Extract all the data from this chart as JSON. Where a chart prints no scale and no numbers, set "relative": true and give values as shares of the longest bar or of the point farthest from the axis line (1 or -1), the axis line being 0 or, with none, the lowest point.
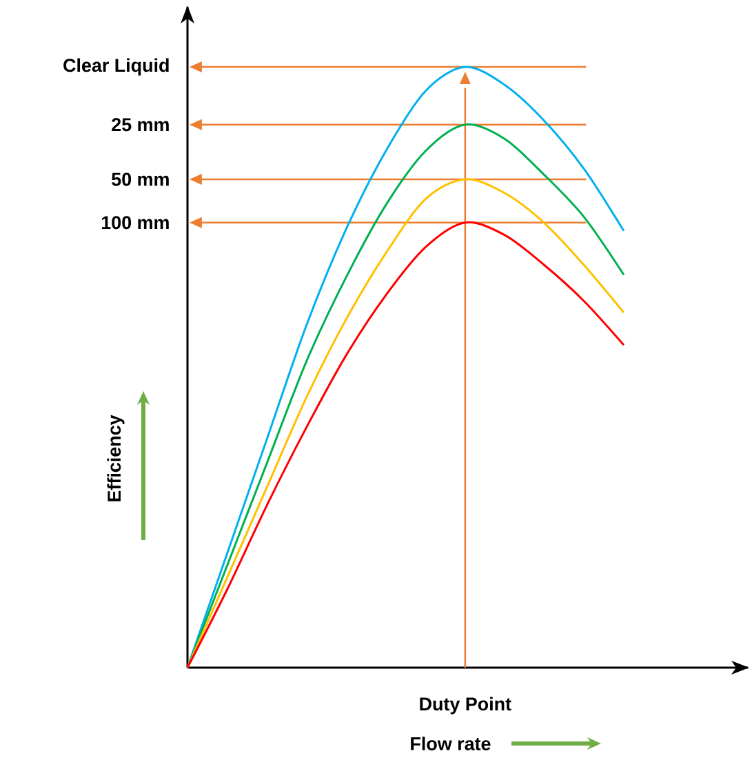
{
  "chart_data": {
    "type": "line",
    "relative": true,
    "xlabel": "Flow rate",
    "ylabel": "Efficiency",
    "categories": [
      null,
      null,
      null,
      null,
      null,
      null,
      null,
      null,
      null,
      null,
      null,
      null
    ],
    "series": [
      {
        "color": "#00b0f0",
        "values": [
          0,
          0.19,
          0.38,
          0.57,
          0.73,
          0.86,
          0.96,
          1,
          0.97,
          0.91,
          0.83,
          0.727
        ]
      },
      {
        "color": "#00b050",
        "values": [
          0,
          0.17,
          0.34,
          0.51,
          0.65,
          0.77,
          0.86,
          0.904,
          0.88,
          0.82,
          0.75,
          0.654
        ]
      },
      {
        "color": "#ffc000",
        "values": [
          0,
          0.15,
          0.3,
          0.45,
          0.58,
          0.69,
          0.78,
          0.813,
          0.79,
          0.74,
          0.67,
          0.591
        ]
      },
      {
        "color": "#ff0000",
        "values": [
          0,
          0.13,
          0.27,
          0.4,
          0.52,
          0.62,
          0.7,
          0.741,
          0.72,
          0.67,
          0.61,
          0.537
        ]
      }
    ],
    "ref_lines": [
      {
        "axis": "y",
        "value": 1,
        "label": "Clear Liquid",
        "color": "#ed7d31"
      },
      {
        "axis": "y",
        "value": 0.904,
        "label": "25 mm",
        "color": "#ed7d31"
      },
      {
        "axis": "y",
        "value": 0.813,
        "label": "50 mm",
        "color": "#ed7d31"
      },
      {
        "axis": "y",
        "value": 0.741,
        "label": "100 mm",
        "color": "#ed7d31"
      }
    ],
    "annotations": [
      "Duty Point"
    ]
  }
}
